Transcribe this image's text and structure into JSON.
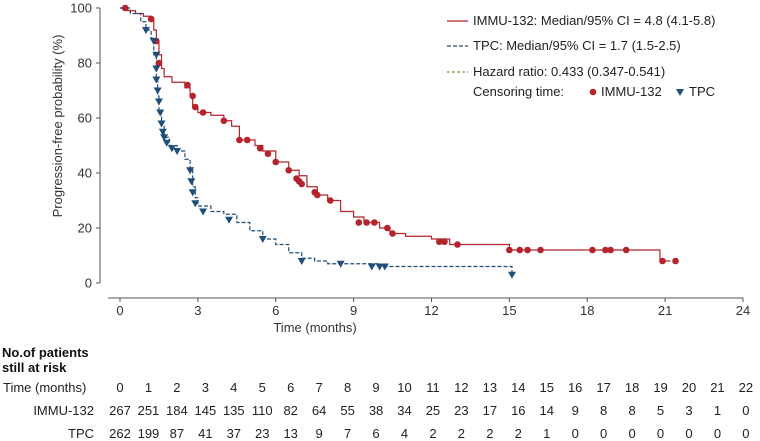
{
  "chart_data": {
    "type": "kaplan-meier",
    "xlabel": "Time (months)",
    "ylabel": "Progression-free probability (%)",
    "xlim": [
      0,
      24
    ],
    "ylim": [
      0,
      100
    ],
    "xticks": [
      0,
      3,
      6,
      9,
      12,
      15,
      18,
      21,
      24
    ],
    "yticks": [
      0,
      20,
      40,
      60,
      80,
      100
    ],
    "colors": {
      "immu": "#b5242c",
      "tpc": "#1e4e79"
    },
    "series": [
      {
        "name": "IMMU-132",
        "legend": "IMMU-132: Median/95% CI = 4.8 (4.1-5.8)",
        "style": "solid",
        "steps": [
          [
            0,
            100
          ],
          [
            0.3,
            99
          ],
          [
            0.6,
            98
          ],
          [
            0.9,
            97
          ],
          [
            1.2,
            96
          ],
          [
            1.3,
            92
          ],
          [
            1.4,
            88
          ],
          [
            1.5,
            83
          ],
          [
            1.6,
            78
          ],
          [
            1.7,
            75
          ],
          [
            2,
            73
          ],
          [
            2.5,
            71
          ],
          [
            2.7,
            68
          ],
          [
            2.8,
            64
          ],
          [
            3,
            62
          ],
          [
            3.5,
            61
          ],
          [
            4,
            59
          ],
          [
            4.3,
            57
          ],
          [
            4.6,
            52
          ],
          [
            5.2,
            50
          ],
          [
            5.5,
            48
          ],
          [
            6,
            44
          ],
          [
            6.5,
            41
          ],
          [
            6.9,
            39
          ],
          [
            7.2,
            35
          ],
          [
            7.6,
            32
          ],
          [
            8,
            30
          ],
          [
            8.5,
            26
          ],
          [
            9,
            24
          ],
          [
            9.4,
            22
          ],
          [
            10,
            20
          ],
          [
            10.4,
            18
          ],
          [
            11,
            17
          ],
          [
            12,
            16
          ],
          [
            12.7,
            14
          ],
          [
            15,
            12
          ],
          [
            17,
            12
          ],
          [
            20.7,
            12
          ],
          [
            20.8,
            8
          ],
          [
            21.2,
            8
          ]
        ],
        "censor": [
          [
            0.2,
            100
          ],
          [
            1.2,
            96
          ],
          [
            1.4,
            88
          ],
          [
            1.5,
            80
          ],
          [
            2.6,
            72
          ],
          [
            2.8,
            68
          ],
          [
            2.9,
            64
          ],
          [
            3.2,
            62
          ],
          [
            4,
            59
          ],
          [
            4.6,
            52
          ],
          [
            4.9,
            52
          ],
          [
            5.4,
            49
          ],
          [
            5.7,
            47
          ],
          [
            6,
            44
          ],
          [
            6.5,
            41
          ],
          [
            6.8,
            38
          ],
          [
            6.9,
            37
          ],
          [
            7,
            36
          ],
          [
            7.5,
            33
          ],
          [
            7.6,
            32
          ],
          [
            8.1,
            30
          ],
          [
            9.2,
            22
          ],
          [
            9.5,
            22
          ],
          [
            9.8,
            22
          ],
          [
            10.3,
            20
          ],
          [
            10.5,
            18
          ],
          [
            12.3,
            15
          ],
          [
            12.5,
            15
          ],
          [
            13,
            14
          ],
          [
            15,
            12
          ],
          [
            15.4,
            12
          ],
          [
            15.7,
            12
          ],
          [
            16.2,
            12
          ],
          [
            18.2,
            12
          ],
          [
            18.7,
            12
          ],
          [
            18.9,
            12
          ],
          [
            19.5,
            12
          ],
          [
            20.9,
            8
          ],
          [
            21.4,
            8
          ]
        ]
      },
      {
        "name": "TPC",
        "legend": "TPC: Median/95% CI = 1.7 (1.5-2.5)",
        "style": "dashed",
        "steps": [
          [
            0,
            100
          ],
          [
            0.4,
            98
          ],
          [
            0.8,
            95
          ],
          [
            1,
            92
          ],
          [
            1.2,
            89
          ],
          [
            1.3,
            83
          ],
          [
            1.4,
            74
          ],
          [
            1.45,
            68
          ],
          [
            1.5,
            62
          ],
          [
            1.6,
            57
          ],
          [
            1.7,
            53
          ],
          [
            1.9,
            50
          ],
          [
            2.2,
            48
          ],
          [
            2.5,
            45
          ],
          [
            2.7,
            41
          ],
          [
            2.8,
            35
          ],
          [
            2.9,
            31
          ],
          [
            3,
            28
          ],
          [
            3.5,
            26
          ],
          [
            4,
            25
          ],
          [
            4.5,
            22
          ],
          [
            5,
            19
          ],
          [
            5.5,
            16
          ],
          [
            6,
            14
          ],
          [
            6.5,
            11
          ],
          [
            7,
            9
          ],
          [
            7.5,
            8
          ],
          [
            8,
            7
          ],
          [
            10,
            6
          ],
          [
            14,
            6
          ],
          [
            15,
            6
          ],
          [
            15.1,
            3
          ]
        ],
        "censor": [
          [
            1,
            92
          ],
          [
            1.3,
            88
          ],
          [
            1.4,
            83
          ],
          [
            1.4,
            78
          ],
          [
            1.4,
            74
          ],
          [
            1.45,
            70
          ],
          [
            1.5,
            66
          ],
          [
            1.55,
            62
          ],
          [
            1.6,
            58
          ],
          [
            1.65,
            55
          ],
          [
            1.7,
            53
          ],
          [
            1.8,
            51
          ],
          [
            2,
            49
          ],
          [
            2.2,
            48
          ],
          [
            2.7,
            41
          ],
          [
            2.75,
            37
          ],
          [
            2.8,
            33
          ],
          [
            2.9,
            29
          ],
          [
            3.2,
            26
          ],
          [
            4.2,
            23
          ],
          [
            5.5,
            16
          ],
          [
            7,
            8
          ],
          [
            8.5,
            7
          ],
          [
            9.7,
            6
          ],
          [
            10,
            6
          ],
          [
            10.2,
            6
          ],
          [
            15.1,
            3
          ]
        ]
      }
    ],
    "hazard_legend": "Hazard ratio: 0.433 (0.347-0.541)",
    "censor_legend": {
      "label": "Censoring time:",
      "immu": "IMMU-132",
      "tpc": "TPC"
    }
  },
  "risk_table": {
    "heading": [
      "No.of patients",
      "still at risk"
    ],
    "time_label": "Time (months)",
    "times": [
      "0",
      "1",
      "2",
      "3",
      "4",
      "5",
      "6",
      "7",
      "8",
      "9",
      "10",
      "11",
      "12",
      "13",
      "14",
      "15",
      "16",
      "17",
      "18",
      "19",
      "20",
      "21",
      "22"
    ],
    "rows": [
      {
        "label": "IMMU-132",
        "values": [
          "267",
          "251",
          "184",
          "145",
          "135",
          "110",
          "82",
          "64",
          "55",
          "38",
          "34",
          "25",
          "23",
          "17",
          "16",
          "14",
          "9",
          "8",
          "8",
          "5",
          "3",
          "1",
          "0"
        ]
      },
      {
        "label": "TPC",
        "values": [
          "262",
          "199",
          "87",
          "41",
          "37",
          "23",
          "13",
          "9",
          "7",
          "6",
          "4",
          "2",
          "2",
          "2",
          "2",
          "1",
          "0",
          "0",
          "0",
          "0",
          "0",
          "0",
          "0"
        ]
      }
    ]
  }
}
